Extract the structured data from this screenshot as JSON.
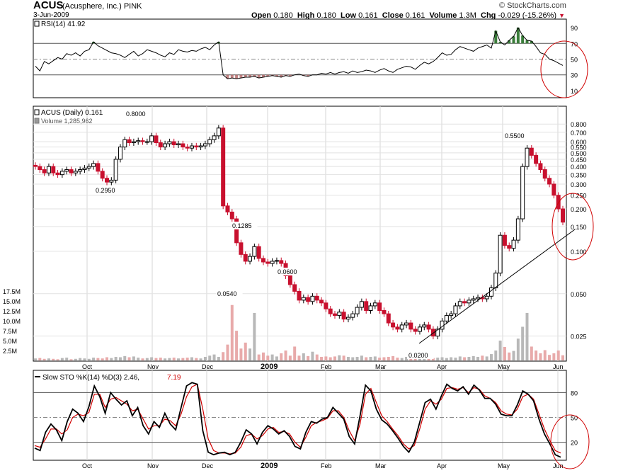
{
  "header": {
    "symbol": "ACUS",
    "company": "(Acusphere, Inc.)",
    "exchange": "PINK",
    "date": "3-Jun-2009",
    "site": "© StockCharts.com",
    "open_label": "Open",
    "open": "0.180",
    "high_label": "High",
    "high": "0.180",
    "low_label": "Low",
    "low": "0.161",
    "close_label": "Close",
    "close": "0.161",
    "volume_label": "Volume",
    "volume": "1.3M",
    "chg_label": "Chg",
    "chg": "-0.029 (-15.26%)",
    "chg_arrow": "▼"
  },
  "colors": {
    "up": "#000000",
    "down": "#c8102e",
    "rsi_green": "#3a7d3a",
    "rsi_red": "#a85050",
    "stoch_k": "#000000",
    "stoch_d": "#d00000",
    "annot": "#d00000",
    "vol_up": "#b8b8b8",
    "vol_down": "#e8aaaa"
  },
  "chart_data": [
    {
      "type": "line",
      "title": "RSI(14) 41.92",
      "yticks": [
        "90",
        "70",
        "50",
        "30",
        "10"
      ],
      "ylim": [
        0,
        100
      ],
      "overbought": 70,
      "oversold": 30,
      "series": [
        {
          "name": "RSI(14)",
          "values": [
            41,
            35,
            47,
            44,
            48,
            52,
            50,
            57,
            55,
            58,
            54,
            60,
            62,
            72,
            67,
            64,
            61,
            58,
            57,
            55,
            52,
            56,
            60,
            54,
            57,
            62,
            60,
            58,
            55,
            53,
            58,
            56,
            62,
            60,
            59,
            61,
            60,
            63,
            65,
            62,
            68,
            72,
            30,
            25,
            26,
            25,
            26,
            27,
            27,
            28,
            26,
            27,
            28,
            29,
            28,
            27,
            29,
            28,
            30,
            31,
            29,
            28,
            30,
            30,
            32,
            31,
            33,
            31,
            33,
            34,
            32,
            35,
            33,
            34,
            36,
            35,
            33,
            36,
            38,
            35,
            33,
            37,
            39,
            41,
            40,
            37,
            42,
            46,
            44,
            47,
            52,
            58,
            55,
            56,
            62,
            66,
            64,
            62,
            60,
            64,
            66,
            68,
            64,
            86,
            72,
            68,
            74,
            79,
            90,
            80,
            74,
            73,
            66,
            58,
            56,
            50,
            48,
            45,
            42
          ]
        }
      ]
    },
    {
      "type": "candlestick",
      "title": "ACUS (Daily) 0.161",
      "scale": "log",
      "ylim": [
        0.017,
        0.85
      ],
      "yticks": [
        "0.800",
        "0.700",
        "0.600",
        "0.550",
        "0.500",
        "0.450",
        "0.400",
        "0.350",
        "0.300",
        "0.250",
        "0.200",
        "0.150",
        "0.100",
        "0.050",
        "0.025"
      ],
      "xticks": [
        "Oct",
        "Nov",
        "Dec",
        "2009",
        "Feb",
        "Mar",
        "Apr",
        "May",
        "Jun"
      ],
      "annotations": [
        "0.8000",
        "0.2950",
        "0.1285",
        "0.0540",
        "0.0600",
        "0.0200",
        "0.5500"
      ],
      "series": [
        {
          "name": "ACUS",
          "close": [
            0.4,
            0.38,
            0.36,
            0.4,
            0.36,
            0.35,
            0.37,
            0.38,
            0.36,
            0.37,
            0.38,
            0.39,
            0.4,
            0.42,
            0.37,
            0.33,
            0.31,
            0.32,
            0.45,
            0.55,
            0.62,
            0.59,
            0.6,
            0.61,
            0.6,
            0.6,
            0.66,
            0.59,
            0.55,
            0.58,
            0.6,
            0.57,
            0.58,
            0.55,
            0.54,
            0.56,
            0.55,
            0.56,
            0.58,
            0.62,
            0.66,
            0.75,
            0.21,
            0.19,
            0.17,
            0.115,
            0.095,
            0.085,
            0.092,
            0.108,
            0.089,
            0.084,
            0.082,
            0.085,
            0.086,
            0.082,
            0.067,
            0.058,
            0.052,
            0.045,
            0.047,
            0.044,
            0.048,
            0.045,
            0.043,
            0.039,
            0.036,
            0.035,
            0.037,
            0.033,
            0.034,
            0.036,
            0.04,
            0.044,
            0.038,
            0.041,
            0.043,
            0.038,
            0.036,
            0.031,
            0.029,
            0.028,
            0.03,
            0.031,
            0.028,
            0.027,
            0.029,
            0.03,
            0.028,
            0.025,
            0.028,
            0.032,
            0.035,
            0.036,
            0.041,
            0.044,
            0.043,
            0.045,
            0.046,
            0.047,
            0.046,
            0.048,
            0.055,
            0.07,
            0.13,
            0.11,
            0.105,
            0.12,
            0.17,
            0.4,
            0.54,
            0.48,
            0.42,
            0.38,
            0.33,
            0.3,
            0.25,
            0.2,
            0.161
          ]
        }
      ]
    },
    {
      "type": "bar",
      "title": "Volume 1,285,962",
      "yticks": [
        "17.5M",
        "15.0M",
        "12.5M",
        "10.0M",
        "7.5M",
        "5.0M",
        "2.5M"
      ],
      "ylim": [
        0,
        19.5
      ],
      "series": [
        {
          "name": "Volume (M)",
          "values": [
            0.5,
            0.6,
            0.4,
            0.5,
            0.4,
            0.3,
            0.6,
            0.7,
            0.3,
            0.4,
            0.6,
            0.5,
            0.4,
            0.7,
            0.6,
            0.5,
            0.8,
            0.6,
            0.9,
            0.8,
            1.1,
            0.8,
            1.0,
            0.7,
            0.5,
            0.6,
            0.8,
            0.6,
            0.7,
            0.5,
            0.6,
            0.7,
            0.5,
            0.6,
            0.7,
            0.8,
            0.6,
            0.5,
            0.9,
            1.2,
            1.5,
            0.9,
            2.1,
            4.0,
            14.0,
            7.5,
            3.0,
            4.5,
            3.0,
            12.0,
            1.5,
            2.0,
            1.2,
            1.5,
            1.0,
            1.8,
            2.5,
            1.2,
            3.5,
            1.2,
            1.8,
            1.1,
            2.2,
            1.5,
            0.9,
            1.0,
            0.8,
            1.0,
            1.3,
            1.2,
            0.9,
            0.8,
            0.9,
            1.2,
            0.8,
            0.9,
            1.0,
            0.7,
            0.8,
            0.9,
            1.1,
            0.7,
            0.6,
            0.9,
            0.8,
            0.7,
            0.6,
            0.8,
            0.7,
            0.6,
            0.7,
            0.8,
            0.6,
            0.8,
            0.7,
            1.0,
            0.8,
            0.9,
            1.1,
            0.9,
            1.2,
            1.0,
            1.6,
            2.5,
            5.0,
            3.4,
            2.0,
            2.4,
            5.5,
            8.5,
            12.0,
            3.5,
            2.5,
            1.8,
            2.6,
            1.4,
            1.8,
            2.5,
            1.3
          ]
        }
      ]
    },
    {
      "type": "line",
      "title": "Slow STO %K(14) %D(3) 2.46, 7.19",
      "yticks": [
        "80",
        "50",
        "20"
      ],
      "ylim": [
        0,
        100
      ],
      "series": [
        {
          "name": "%K(14)",
          "values": [
            13,
            10,
            32,
            42,
            35,
            22,
            45,
            60,
            55,
            45,
            63,
            88,
            75,
            55,
            80,
            72,
            65,
            70,
            52,
            62,
            40,
            30,
            45,
            38,
            55,
            42,
            35,
            62,
            88,
            92,
            90,
            34,
            8,
            5,
            7,
            8,
            5,
            8,
            20,
            35,
            30,
            18,
            32,
            40,
            36,
            30,
            34,
            27,
            15,
            12,
            32,
            45,
            43,
            48,
            50,
            62,
            55,
            48,
            27,
            18,
            52,
            89,
            82,
            60,
            47,
            42,
            34,
            25,
            15,
            8,
            20,
            44,
            68,
            72,
            60,
            76,
            90,
            85,
            82,
            87,
            78,
            89,
            83,
            73,
            73,
            66,
            54,
            52,
            52,
            65,
            82,
            78,
            70,
            48,
            30,
            18,
            5,
            2
          ]
        },
        {
          "name": "%D(3)",
          "values": [
            16,
            14,
            24,
            36,
            36,
            30,
            35,
            50,
            54,
            52,
            56,
            78,
            78,
            62,
            72,
            74,
            70,
            66,
            58,
            60,
            48,
            36,
            40,
            40,
            48,
            46,
            40,
            54,
            75,
            87,
            90,
            60,
            24,
            10,
            7,
            7,
            6,
            7,
            14,
            28,
            30,
            24,
            28,
            36,
            38,
            32,
            33,
            30,
            20,
            14,
            26,
            40,
            44,
            46,
            49,
            58,
            58,
            50,
            34,
            22,
            42,
            78,
            85,
            68,
            52,
            45,
            36,
            28,
            18,
            12,
            16,
            36,
            60,
            70,
            66,
            72,
            85,
            86,
            84,
            86,
            80,
            86,
            84,
            76,
            73,
            68,
            58,
            54,
            53,
            60,
            75,
            78,
            72,
            54,
            36,
            22,
            10,
            7
          ]
        }
      ]
    }
  ]
}
